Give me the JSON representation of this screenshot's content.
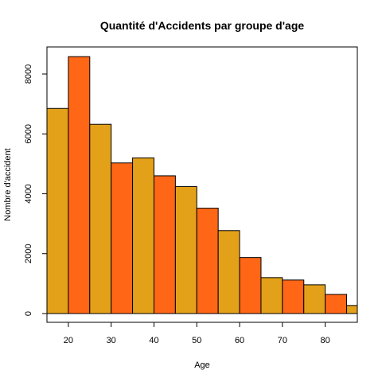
{
  "chart_data": {
    "type": "bar",
    "title": "Quantité d'Accidents par groupe d'age",
    "xlabel": "Age",
    "ylabel": "Nombre d'accident",
    "xlim": [
      15,
      87.5
    ],
    "ylim": [
      0,
      8900
    ],
    "x_ticks": [
      20,
      30,
      40,
      50,
      60,
      70,
      80
    ],
    "y_ticks": [
      0,
      2000,
      4000,
      6000,
      8000
    ],
    "bins": [
      {
        "start": 15,
        "end": 20,
        "value": 6850
      },
      {
        "start": 20,
        "end": 25,
        "value": 8580
      },
      {
        "start": 25,
        "end": 30,
        "value": 6320
      },
      {
        "start": 30,
        "end": 35,
        "value": 5030
      },
      {
        "start": 35,
        "end": 40,
        "value": 5200
      },
      {
        "start": 40,
        "end": 45,
        "value": 4600
      },
      {
        "start": 45,
        "end": 50,
        "value": 4240
      },
      {
        "start": 50,
        "end": 55,
        "value": 3520
      },
      {
        "start": 55,
        "end": 60,
        "value": 2770
      },
      {
        "start": 60,
        "end": 65,
        "value": 1870
      },
      {
        "start": 65,
        "end": 70,
        "value": 1200
      },
      {
        "start": 70,
        "end": 75,
        "value": 1120
      },
      {
        "start": 75,
        "end": 80,
        "value": 960
      },
      {
        "start": 80,
        "end": 85,
        "value": 640
      },
      {
        "start": 85,
        "end": 90,
        "value": 270
      }
    ],
    "colors": [
      "#E3A11A",
      "#FF6616"
    ],
    "grid": false,
    "legend": "none"
  }
}
